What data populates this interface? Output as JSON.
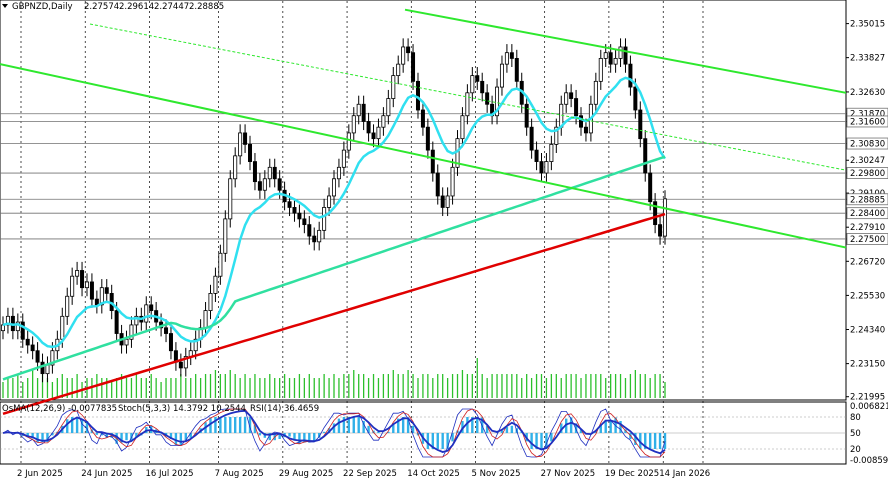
{
  "header": {
    "symbol_line": "GBPNZD,Daily",
    "ohlc": [
      "2.27574",
      "2.29614",
      "2.27447",
      "2.28885"
    ]
  },
  "indicator_header": {
    "osma": "OsMA(12,26,9) -0.0077835",
    "stoch": "Stoch(5,3,3) 14.3792 10.2544",
    "rsi": "RSI(14) 36.4659"
  },
  "colors": {
    "background": "#ffffff",
    "grid": "#000000",
    "bull_candle": "#000000",
    "bear_candle": "#000000",
    "ema_fast": "#30e0f0",
    "ema_mid": "#30e0a0",
    "ema_slow": "#e00000",
    "trendline": "#2ee82e",
    "volume": "#2cc02c",
    "osma_bars": "#30b0e8",
    "stoch_main": "#2030c0",
    "stoch_signal": "#d02020",
    "rsi_line": "#2030c0",
    "price_box": "#ffffff"
  },
  "chart_data": {
    "type": "candlestick",
    "ylim": [
      2.2195,
      2.3535
    ],
    "y_ticks": [
      "2.35015",
      "2.33827",
      "2.32630",
      "2.31870",
      "2.31600",
      "2.30830",
      "2.30247",
      "2.29800",
      "2.29100",
      "2.28885",
      "2.28400",
      "2.27910",
      "2.27500",
      "2.26720",
      "2.25530",
      "2.24340",
      "2.23150",
      "2.21995"
    ],
    "highlighted_levels": [
      "2.31870",
      "2.31600",
      "2.30830",
      "2.29800",
      "2.28885",
      "2.28400",
      "2.27500"
    ],
    "x_labels": [
      "2 Jun 2025",
      "24 Jun 2025",
      "16 Jul 2025",
      "7 Aug 2025",
      "29 Aug 2025",
      "22 Sep 2025",
      "14 Oct 2025",
      "5 Nov 2025",
      "27 Nov 2025",
      "19 Dec 2025",
      "14 Jan 2026"
    ],
    "close_series": [
      2.245,
      2.248,
      2.243,
      2.246,
      2.24,
      2.238,
      2.236,
      2.232,
      2.228,
      2.231,
      2.236,
      2.24,
      2.248,
      2.255,
      2.262,
      2.264,
      2.258,
      2.26,
      2.254,
      2.252,
      2.258,
      2.256,
      2.25,
      2.242,
      2.238,
      2.24,
      2.245,
      2.248,
      2.246,
      2.252,
      2.25,
      2.246,
      2.244,
      2.242,
      2.236,
      2.232,
      2.23,
      2.234,
      2.236,
      2.24,
      2.244,
      2.25,
      2.256,
      2.262,
      2.27,
      2.282,
      2.296,
      2.304,
      2.312,
      2.308,
      2.302,
      2.295,
      2.292,
      2.296,
      2.3,
      2.296,
      2.292,
      2.288,
      2.286,
      2.284,
      2.282,
      2.28,
      2.276,
      2.274,
      2.278,
      2.286,
      2.29,
      2.296,
      2.3,
      2.306,
      2.312,
      2.318,
      2.322,
      2.316,
      2.312,
      2.31,
      2.314,
      2.318,
      2.324,
      2.332,
      2.336,
      2.342,
      2.34,
      2.33,
      2.32,
      2.314,
      2.306,
      2.298,
      2.29,
      2.286,
      2.29,
      2.3,
      2.31,
      2.318,
      2.326,
      2.332,
      2.33,
      2.326,
      2.322,
      2.318,
      2.328,
      2.336,
      2.34,
      2.338,
      2.33,
      2.322,
      2.314,
      2.306,
      2.302,
      2.298,
      2.302,
      2.308,
      2.314,
      2.322,
      2.326,
      2.324,
      2.318,
      2.314,
      2.312,
      2.322,
      2.33,
      2.338,
      2.34,
      2.336,
      2.338,
      2.342,
      2.336,
      2.328,
      2.32,
      2.31,
      2.298,
      2.288,
      2.28,
      2.276,
      2.289
    ],
    "volume_series": [
      4,
      5,
      5,
      6,
      4,
      5,
      7,
      5,
      6,
      5,
      4,
      5,
      6,
      5,
      5,
      6,
      4,
      5,
      5,
      6,
      5,
      5,
      4,
      5,
      6,
      5,
      5,
      6,
      5,
      5,
      6,
      5,
      4,
      5,
      5,
      5,
      6,
      5,
      5,
      6,
      5,
      6,
      6,
      7,
      6,
      6,
      7,
      6,
      5,
      6,
      5,
      6,
      5,
      5,
      6,
      5,
      5,
      6,
      5,
      5,
      6,
      5,
      6,
      5,
      5,
      6,
      5,
      6,
      5,
      6,
      6,
      7,
      6,
      6,
      5,
      6,
      5,
      6,
      6,
      7,
      6,
      6,
      7,
      6,
      5,
      6,
      6,
      5,
      6,
      6,
      5,
      6,
      6,
      7,
      6,
      6,
      10,
      6,
      5,
      6,
      6,
      6,
      6,
      6,
      6,
      5,
      6,
      5,
      6,
      6,
      5,
      6,
      6,
      5,
      6,
      6,
      6,
      5,
      6,
      6,
      6,
      6,
      5,
      6,
      6,
      6,
      5,
      6,
      7,
      6,
      6,
      5,
      6,
      6,
      4
    ],
    "subwindow": {
      "ylim": [
        -0.008593,
        0.0068213
      ],
      "ticks": [
        "0.0068213",
        "80",
        "50",
        "20",
        "-0.008593"
      ]
    }
  }
}
